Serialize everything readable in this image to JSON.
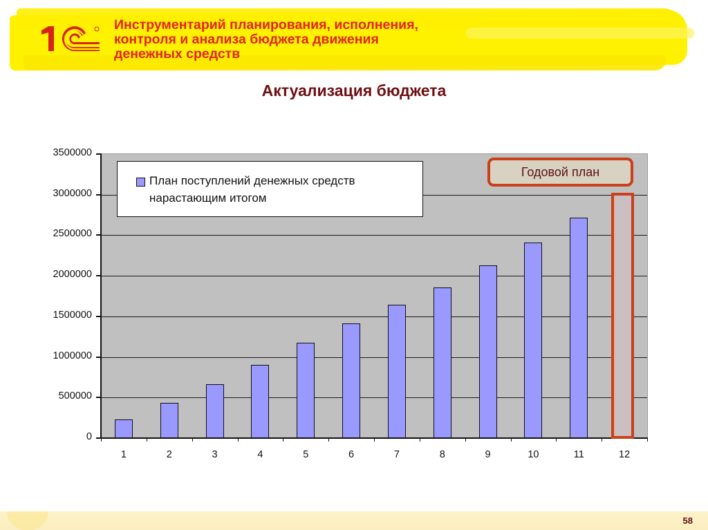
{
  "header": {
    "logo_text": "1С",
    "title_lines": [
      "Инструментарий планирования, исполнения,",
      "контроля и анализа бюджета движения",
      "денежных средств"
    ]
  },
  "colors": {
    "title_red": "#e2241a",
    "chart_title": "#6e0e12",
    "header_band": "#fff200",
    "plot_background": "#c0c0c0",
    "bar_fill": "#9999ff",
    "highlight_border": "#c9401a",
    "highlight_fill": "#ccbfc4",
    "annual_label_bg": "#d8d2c2"
  },
  "chart_data": {
    "type": "bar",
    "title": "Актуализация бюджета",
    "xlabel": "",
    "ylabel": "",
    "categories": [
      "1",
      "2",
      "3",
      "4",
      "5",
      "6",
      "7",
      "8",
      "9",
      "10",
      "11",
      "12"
    ],
    "series": [
      {
        "name": "План поступлений денежных средств нарастающим итогом",
        "values": [
          220000,
          430000,
          655000,
          890000,
          1165000,
          1405000,
          1635000,
          1850000,
          2120000,
          2400000,
          2710000,
          null
        ]
      }
    ],
    "ylim": [
      0,
      3500000
    ],
    "yticks": [
      "0",
      "500000",
      "1000000",
      "1500000",
      "2000000",
      "2500000",
      "3000000",
      "3500000"
    ],
    "grid": true,
    "legend": {
      "position": "top-left inside",
      "entries": [
        "План поступлений денежных средств нарастающим итогом"
      ]
    },
    "annotations": [
      {
        "text": "Годовой план",
        "target_category": "12",
        "style": "highlight box around month 12"
      }
    ]
  },
  "legend": {
    "line1": "План поступлений денежных средств",
    "line2": "нарастающим итогом"
  },
  "annotation": {
    "label": "Годовой план"
  },
  "footer": {
    "page_number": "58"
  }
}
